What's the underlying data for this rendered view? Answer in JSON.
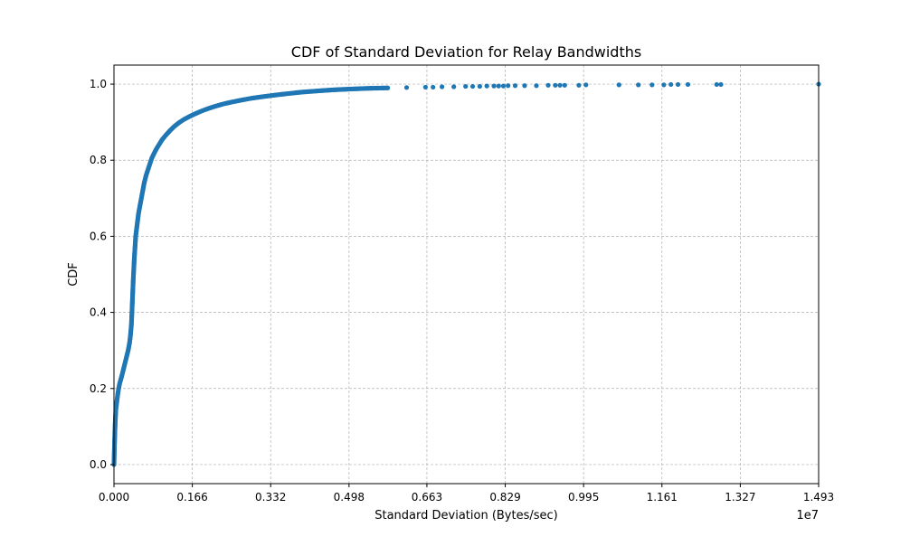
{
  "chart_data": {
    "type": "scatter",
    "title": "CDF of Standard Deviation for Relay Bandwidths",
    "xlabel": "Standard Deviation (Bytes/sec)",
    "ylabel": "CDF",
    "x_multiplier_label": "1e7",
    "xlim": [
      0,
      1.493
    ],
    "ylim": [
      -0.05,
      1.05
    ],
    "x_unit_scale": 10000000,
    "xticks": [
      {
        "value": 0.0,
        "label": "0.000"
      },
      {
        "value": 0.166,
        "label": "0.166"
      },
      {
        "value": 0.332,
        "label": "0.332"
      },
      {
        "value": 0.498,
        "label": "0.498"
      },
      {
        "value": 0.663,
        "label": "0.663"
      },
      {
        "value": 0.829,
        "label": "0.829"
      },
      {
        "value": 0.995,
        "label": "0.995"
      },
      {
        "value": 1.161,
        "label": "1.161"
      },
      {
        "value": 1.327,
        "label": "1.327"
      },
      {
        "value": 1.493,
        "label": "1.493"
      }
    ],
    "yticks": [
      {
        "value": 0.0,
        "label": "0.0"
      },
      {
        "value": 0.2,
        "label": "0.2"
      },
      {
        "value": 0.4,
        "label": "0.4"
      },
      {
        "value": 0.6,
        "label": "0.6"
      },
      {
        "value": 0.8,
        "label": "0.8"
      },
      {
        "value": 1.0,
        "label": "1.0"
      }
    ],
    "grid": true,
    "series": [
      {
        "color": "#1f77b4",
        "x": [
          0.0,
          0.001,
          0.002,
          0.003,
          0.004,
          0.006,
          0.008,
          0.01,
          0.012,
          0.015,
          0.018,
          0.021,
          0.024,
          0.027,
          0.03,
          0.033,
          0.035,
          0.037,
          0.038,
          0.039,
          0.04,
          0.041,
          0.042,
          0.043,
          0.044,
          0.045,
          0.046,
          0.048,
          0.05,
          0.052,
          0.055,
          0.058,
          0.061,
          0.064,
          0.068,
          0.072,
          0.076,
          0.08,
          0.085,
          0.09,
          0.096,
          0.102,
          0.11,
          0.118,
          0.127,
          0.137,
          0.148,
          0.16,
          0.172,
          0.185,
          0.2,
          0.215,
          0.232,
          0.25,
          0.27,
          0.292,
          0.315,
          0.34,
          0.368,
          0.398,
          0.43,
          0.465,
          0.5,
          0.54,
          0.58,
          0.62,
          0.66,
          0.676,
          0.695,
          0.72,
          0.745,
          0.76,
          0.775,
          0.79,
          0.805,
          0.815,
          0.825,
          0.835,
          0.85,
          0.87,
          0.895,
          0.92,
          0.935,
          0.945,
          0.955,
          0.985,
          1.0,
          1.07,
          1.111,
          1.14,
          1.165,
          1.18,
          1.195,
          1.216,
          1.277,
          1.286,
          1.493
        ],
        "y": [
          0.0,
          0.05,
          0.09,
          0.12,
          0.145,
          0.165,
          0.185,
          0.2,
          0.213,
          0.226,
          0.24,
          0.255,
          0.27,
          0.285,
          0.3,
          0.32,
          0.34,
          0.37,
          0.4,
          0.43,
          0.46,
          0.49,
          0.515,
          0.54,
          0.56,
          0.58,
          0.6,
          0.62,
          0.64,
          0.66,
          0.68,
          0.7,
          0.72,
          0.74,
          0.76,
          0.775,
          0.79,
          0.805,
          0.818,
          0.83,
          0.842,
          0.854,
          0.866,
          0.877,
          0.888,
          0.898,
          0.907,
          0.915,
          0.922,
          0.929,
          0.936,
          0.942,
          0.948,
          0.953,
          0.958,
          0.963,
          0.967,
          0.971,
          0.975,
          0.979,
          0.982,
          0.985,
          0.987,
          0.989,
          0.99,
          0.991,
          0.992,
          0.992,
          0.993,
          0.993,
          0.994,
          0.994,
          0.994,
          0.995,
          0.995,
          0.995,
          0.995,
          0.996,
          0.996,
          0.996,
          0.996,
          0.997,
          0.997,
          0.997,
          0.997,
          0.997,
          0.998,
          0.998,
          0.998,
          0.998,
          0.998,
          0.999,
          0.999,
          0.999,
          0.999,
          0.999,
          1.0
        ]
      }
    ]
  }
}
